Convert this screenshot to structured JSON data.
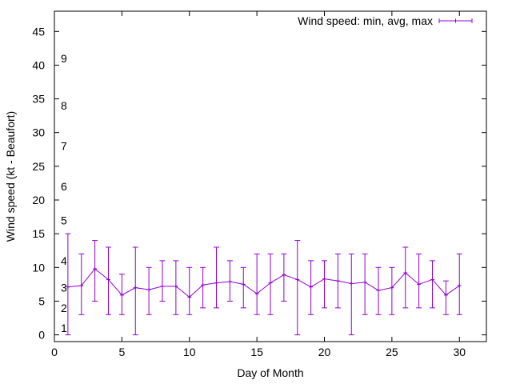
{
  "chart_data": {
    "type": "line",
    "title": "",
    "xlabel": "Day of Month",
    "ylabel": "Wind speed (kt - Beaufort)",
    "xlim": [
      0,
      32
    ],
    "ylim": [
      -1,
      48
    ],
    "xticks": [
      0,
      5,
      10,
      15,
      20,
      25,
      30
    ],
    "yticks": [
      0,
      5,
      10,
      15,
      20,
      25,
      30,
      35,
      40,
      45
    ],
    "grid": false,
    "legend_position": "top-right",
    "series_color": "#9400d3",
    "beaufort_labels": [
      {
        "label": "1",
        "y": 1
      },
      {
        "label": "2",
        "y": 4
      },
      {
        "label": "3",
        "y": 7
      },
      {
        "label": "4",
        "y": 11
      },
      {
        "label": "5",
        "y": 17
      },
      {
        "label": "6",
        "y": 22
      },
      {
        "label": "7",
        "y": 28
      },
      {
        "label": "8",
        "y": 34
      },
      {
        "label": "9",
        "y": 41
      }
    ],
    "series": [
      {
        "name": "Wind speed: min, avg, max",
        "x": [
          1,
          2,
          3,
          4,
          5,
          6,
          7,
          8,
          9,
          10,
          11,
          12,
          13,
          14,
          15,
          16,
          17,
          18,
          19,
          20,
          21,
          22,
          23,
          24,
          25,
          26,
          27,
          28,
          29,
          30
        ],
        "avg": [
          7.1,
          7.3,
          9.8,
          8.2,
          5.9,
          7.0,
          6.7,
          7.2,
          7.2,
          5.6,
          7.4,
          7.7,
          7.9,
          7.5,
          6.1,
          7.7,
          8.9,
          8.2,
          7.1,
          8.3,
          8.0,
          7.6,
          7.8,
          6.6,
          7.0,
          9.2,
          7.5,
          8.2,
          5.9,
          7.3
        ],
        "min": [
          0,
          3,
          5,
          3,
          3,
          0,
          3,
          5,
          3,
          3,
          4,
          4,
          5,
          4,
          3,
          3,
          5,
          0,
          3,
          4,
          4,
          0,
          3,
          3,
          3,
          4,
          4,
          4,
          3,
          3
        ],
        "max": [
          15,
          12,
          14,
          13,
          9,
          13,
          10,
          11,
          11,
          10,
          10,
          13,
          11,
          10,
          12,
          12,
          12,
          14,
          11,
          11,
          12,
          12,
          12,
          10,
          10,
          13,
          12,
          11,
          8,
          12
        ]
      }
    ]
  }
}
